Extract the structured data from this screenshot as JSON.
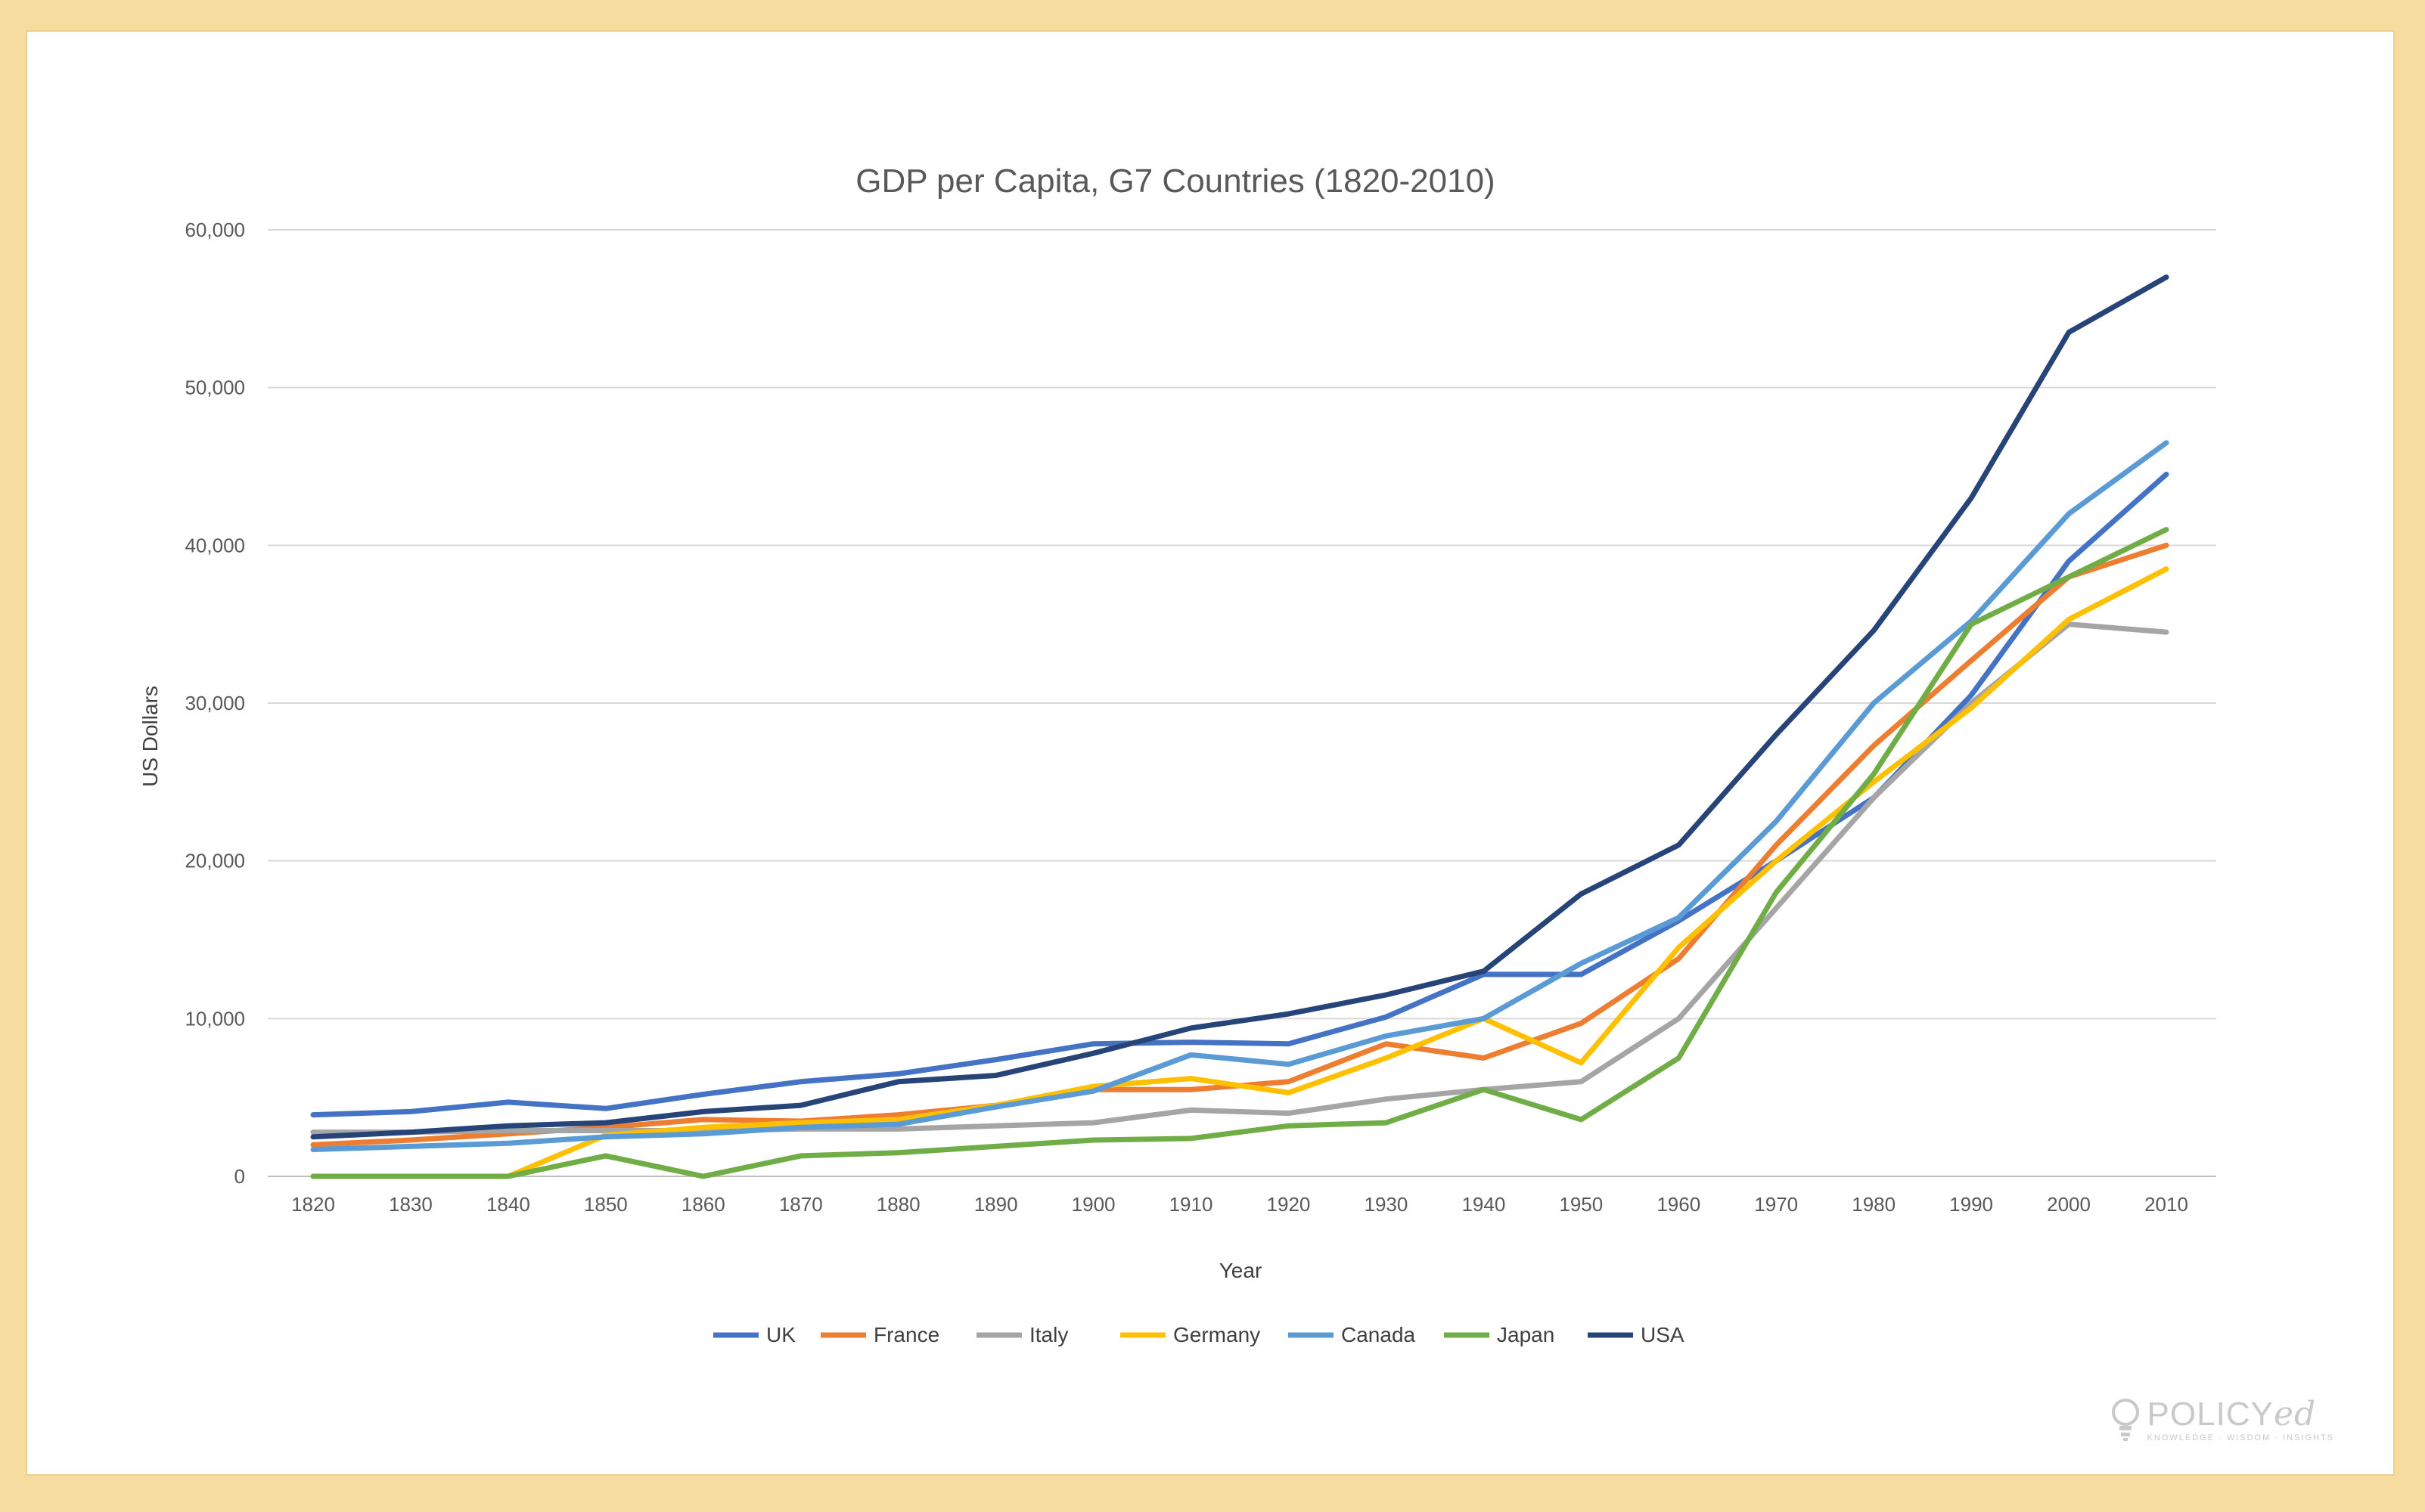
{
  "chart_data": {
    "type": "line",
    "title": "GDP per Capita, G7 Countries (1820-2010)",
    "xlabel": "Year",
    "ylabel": "US Dollars",
    "ylim": [
      0,
      60000
    ],
    "yticks": [
      0,
      10000,
      20000,
      30000,
      40000,
      50000,
      60000
    ],
    "ytick_labels": [
      "0",
      "10,000",
      "20,000",
      "30,000",
      "40,000",
      "50,000",
      "60,000"
    ],
    "categories": [
      "1820",
      "1830",
      "1840",
      "1850",
      "1860",
      "1870",
      "1880",
      "1890",
      "1900",
      "1910",
      "1920",
      "1930",
      "1940",
      "1950",
      "1960",
      "1970",
      "1980",
      "1990",
      "2000",
      "2010"
    ],
    "grid": true,
    "legend_position": "bottom",
    "series": [
      {
        "name": "UK",
        "color": "#4472c4",
        "values": [
          3900,
          4100,
          4700,
          4300,
          5200,
          6000,
          6500,
          7400,
          8400,
          8500,
          8400,
          10100,
          12800,
          12800,
          16200,
          20000,
          24000,
          30500,
          39000,
          44500
        ]
      },
      {
        "name": "France",
        "color": "#ed7d31",
        "values": [
          2000,
          2300,
          2700,
          3100,
          3600,
          3500,
          3900,
          4500,
          5500,
          5500,
          6000,
          8400,
          7500,
          9700,
          13800,
          21000,
          27300,
          32700,
          38000,
          40000
        ]
      },
      {
        "name": "Italy",
        "color": "#a5a5a5",
        "values": [
          2800,
          2800,
          2900,
          2900,
          2900,
          3000,
          3000,
          3200,
          3400,
          4200,
          4000,
          4900,
          5500,
          6000,
          10000,
          17000,
          24000,
          30000,
          35000,
          34500
        ]
      },
      {
        "name": "Germany",
        "color": "#ffc000",
        "values": [
          0,
          0,
          0,
          2600,
          3100,
          3400,
          3600,
          4500,
          5700,
          6200,
          5300,
          7500,
          10000,
          7200,
          14500,
          20000,
          25000,
          29700,
          35300,
          38500
        ]
      },
      {
        "name": "Canada",
        "color": "#5b9bd5",
        "values": [
          1700,
          1900,
          2100,
          2500,
          2700,
          3100,
          3300,
          4400,
          5400,
          7700,
          7100,
          8900,
          10000,
          13500,
          16400,
          22500,
          30000,
          35200,
          42000,
          46500
        ]
      },
      {
        "name": "Japan",
        "color": "#70ad47",
        "values": [
          0,
          0,
          0,
          1300,
          0,
          1300,
          1500,
          1900,
          2300,
          2400,
          3200,
          3400,
          5500,
          3600,
          7500,
          18000,
          25500,
          35000,
          38000,
          41000
        ]
      },
      {
        "name": "USA",
        "color": "#264478",
        "values": [
          2500,
          2800,
          3200,
          3400,
          4100,
          4500,
          6000,
          6400,
          7800,
          9400,
          10300,
          11500,
          13000,
          17900,
          21000,
          28000,
          34600,
          43000,
          53500,
          57000
        ]
      }
    ]
  },
  "logo": {
    "name_main": "POLICY",
    "name_italic": "ed",
    "tagline": "KNOWLEDGE · WISDOM · INSIGHTS"
  }
}
